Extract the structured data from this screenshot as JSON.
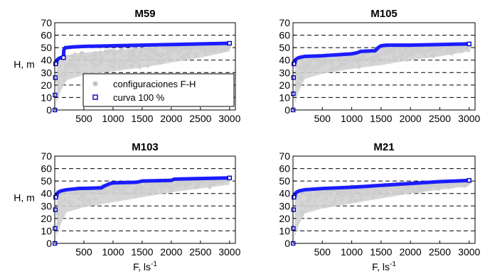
{
  "chart_data": [
    {
      "type": "scatter",
      "title": "M59",
      "ylabel": "H, m",
      "xlabel": "",
      "xlim": [
        0,
        3100
      ],
      "ylim": [
        0,
        70
      ],
      "xticks": [
        500,
        1000,
        1500,
        2000,
        2500,
        3000
      ],
      "yticks": [
        0,
        10,
        20,
        30,
        40,
        50,
        60,
        70
      ],
      "grid": true,
      "legend": {
        "placement": "lower-left",
        "entries": [
          "configuraciones F-H",
          "curva 100 %"
        ]
      },
      "series": [
        {
          "name": "configuraciones F-H",
          "color": "#c8c8c8",
          "marker": "asterisk",
          "band": {
            "x": [
              30,
              100,
              200,
              500,
              1000,
              1500,
              2000,
              2500,
              3000
            ],
            "y_low": [
              5,
              15,
              24,
              28,
              31,
              34,
              38,
              42,
              47
            ],
            "y_high": [
              40,
              41,
              44,
              46,
              48,
              50,
              51,
              52,
              53
            ]
          }
        },
        {
          "name": "curva 100 %",
          "color": "#0000ff",
          "marker": "square",
          "x": [
            30,
            40,
            60,
            100,
            150,
            155,
            180,
            200,
            300,
            500,
            1000,
            1500,
            2000,
            2500,
            3000
          ],
          "y": [
            37,
            40,
            41,
            42,
            42,
            48,
            50,
            50,
            50.5,
            51,
            51.5,
            52,
            52.5,
            53,
            53.5
          ],
          "markers": [
            {
              "x": 2,
              "y": 0
            },
            {
              "x": 5,
              "y": 12
            },
            {
              "x": 10,
              "y": 26
            },
            {
              "x": 15,
              "y": 37
            },
            {
              "x": 150,
              "y": 42
            },
            {
              "x": 3000,
              "y": 53.5
            }
          ]
        }
      ]
    },
    {
      "type": "scatter",
      "title": "M105",
      "ylabel": "",
      "xlabel": "",
      "xlim": [
        0,
        3100
      ],
      "ylim": [
        0,
        70
      ],
      "xticks": [
        500,
        1000,
        1500,
        2000,
        2500,
        3000
      ],
      "yticks": [
        0,
        10,
        20,
        30,
        40,
        50,
        60,
        70
      ],
      "grid": true,
      "series": [
        {
          "name": "configuraciones F-H",
          "color": "#c8c8c8",
          "marker": "asterisk",
          "band": {
            "x": [
              30,
              100,
              200,
              500,
              1000,
              1500,
              2000,
              2500,
              3000
            ],
            "y_low": [
              5,
              15,
              25,
              29,
              33,
              36,
              40,
              43,
              47
            ],
            "y_high": [
              40,
              41,
              42,
              44,
              45,
              50,
              51,
              52,
              53
            ]
          }
        },
        {
          "name": "curva 100 %",
          "color": "#0000ff",
          "marker": "square",
          "x": [
            30,
            40,
            60,
            100,
            200,
            500,
            1000,
            1100,
            1150,
            1400,
            1450,
            1500,
            1600,
            2000,
            2500,
            3000
          ],
          "y": [
            37,
            40,
            41,
            42,
            43,
            43.5,
            45,
            46,
            47,
            47.5,
            50,
            51.5,
            52,
            52,
            52.5,
            53
          ],
          "markers": [
            {
              "x": 2,
              "y": 0
            },
            {
              "x": 5,
              "y": 13
            },
            {
              "x": 10,
              "y": 26
            },
            {
              "x": 15,
              "y": 37
            },
            {
              "x": 3000,
              "y": 53
            }
          ]
        }
      ]
    },
    {
      "type": "scatter",
      "title": "M103",
      "ylabel": "H, m",
      "xlabel": "F, ls-1",
      "xlim": [
        0,
        3100
      ],
      "ylim": [
        0,
        70
      ],
      "xticks": [
        500,
        1000,
        1500,
        2000,
        2500,
        3000
      ],
      "yticks": [
        0,
        10,
        20,
        30,
        40,
        50,
        60,
        70
      ],
      "grid": true,
      "series": [
        {
          "name": "configuraciones F-H",
          "color": "#c8c8c8",
          "marker": "asterisk",
          "band": {
            "x": [
              30,
              100,
              200,
              500,
              1000,
              1500,
              2000,
              2500,
              3000
            ],
            "y_low": [
              5,
              15,
              25,
              29,
              33,
              37,
              41,
              44,
              47
            ],
            "y_high": [
              40,
              41,
              43,
              44,
              48,
              50,
              51,
              52,
              52
            ]
          }
        },
        {
          "name": "curva 100 %",
          "color": "#0000ff",
          "marker": "square",
          "x": [
            30,
            40,
            60,
            100,
            200,
            400,
            800,
            850,
            950,
            1000,
            1400,
            1500,
            2000,
            2050,
            2500,
            3000
          ],
          "y": [
            37,
            40,
            41,
            42,
            43,
            44,
            44.5,
            46,
            48,
            48.5,
            49,
            50,
            50.5,
            51.5,
            52,
            52.5
          ],
          "markers": [
            {
              "x": 2,
              "y": 0
            },
            {
              "x": 5,
              "y": 12
            },
            {
              "x": 10,
              "y": 27
            },
            {
              "x": 15,
              "y": 37
            },
            {
              "x": 3000,
              "y": 52.5
            }
          ]
        }
      ]
    },
    {
      "type": "scatter",
      "title": "M21",
      "ylabel": "",
      "xlabel": "F, ls-1",
      "xlim": [
        0,
        3100
      ],
      "ylim": [
        0,
        70
      ],
      "xticks": [
        500,
        1000,
        1500,
        2000,
        2500,
        3000
      ],
      "yticks": [
        0,
        10,
        20,
        30,
        40,
        50,
        60,
        70
      ],
      "grid": true,
      "series": [
        {
          "name": "configuraciones F-H",
          "color": "#c8c8c8",
          "marker": "asterisk",
          "band": {
            "x": [
              30,
              100,
              200,
              500,
              1000,
              1500,
              2000,
              2500,
              3000
            ],
            "y_low": [
              5,
              15,
              24,
              28,
              32,
              36,
              40,
              43,
              46
            ],
            "y_high": [
              40,
              41,
              42,
              44,
              46,
              47,
              48,
              49,
              50
            ]
          }
        },
        {
          "name": "curva 100 %",
          "color": "#0000ff",
          "marker": "square",
          "x": [
            30,
            40,
            60,
            100,
            200,
            500,
            1000,
            1500,
            2000,
            2500,
            3000
          ],
          "y": [
            37,
            40,
            41,
            42,
            43,
            44,
            45,
            46.5,
            48,
            49.5,
            50.5
          ],
          "markers": [
            {
              "x": 2,
              "y": 0
            },
            {
              "x": 5,
              "y": 12
            },
            {
              "x": 10,
              "y": 27
            },
            {
              "x": 15,
              "y": 37
            },
            {
              "x": 3000,
              "y": 50.5
            }
          ]
        }
      ]
    }
  ]
}
